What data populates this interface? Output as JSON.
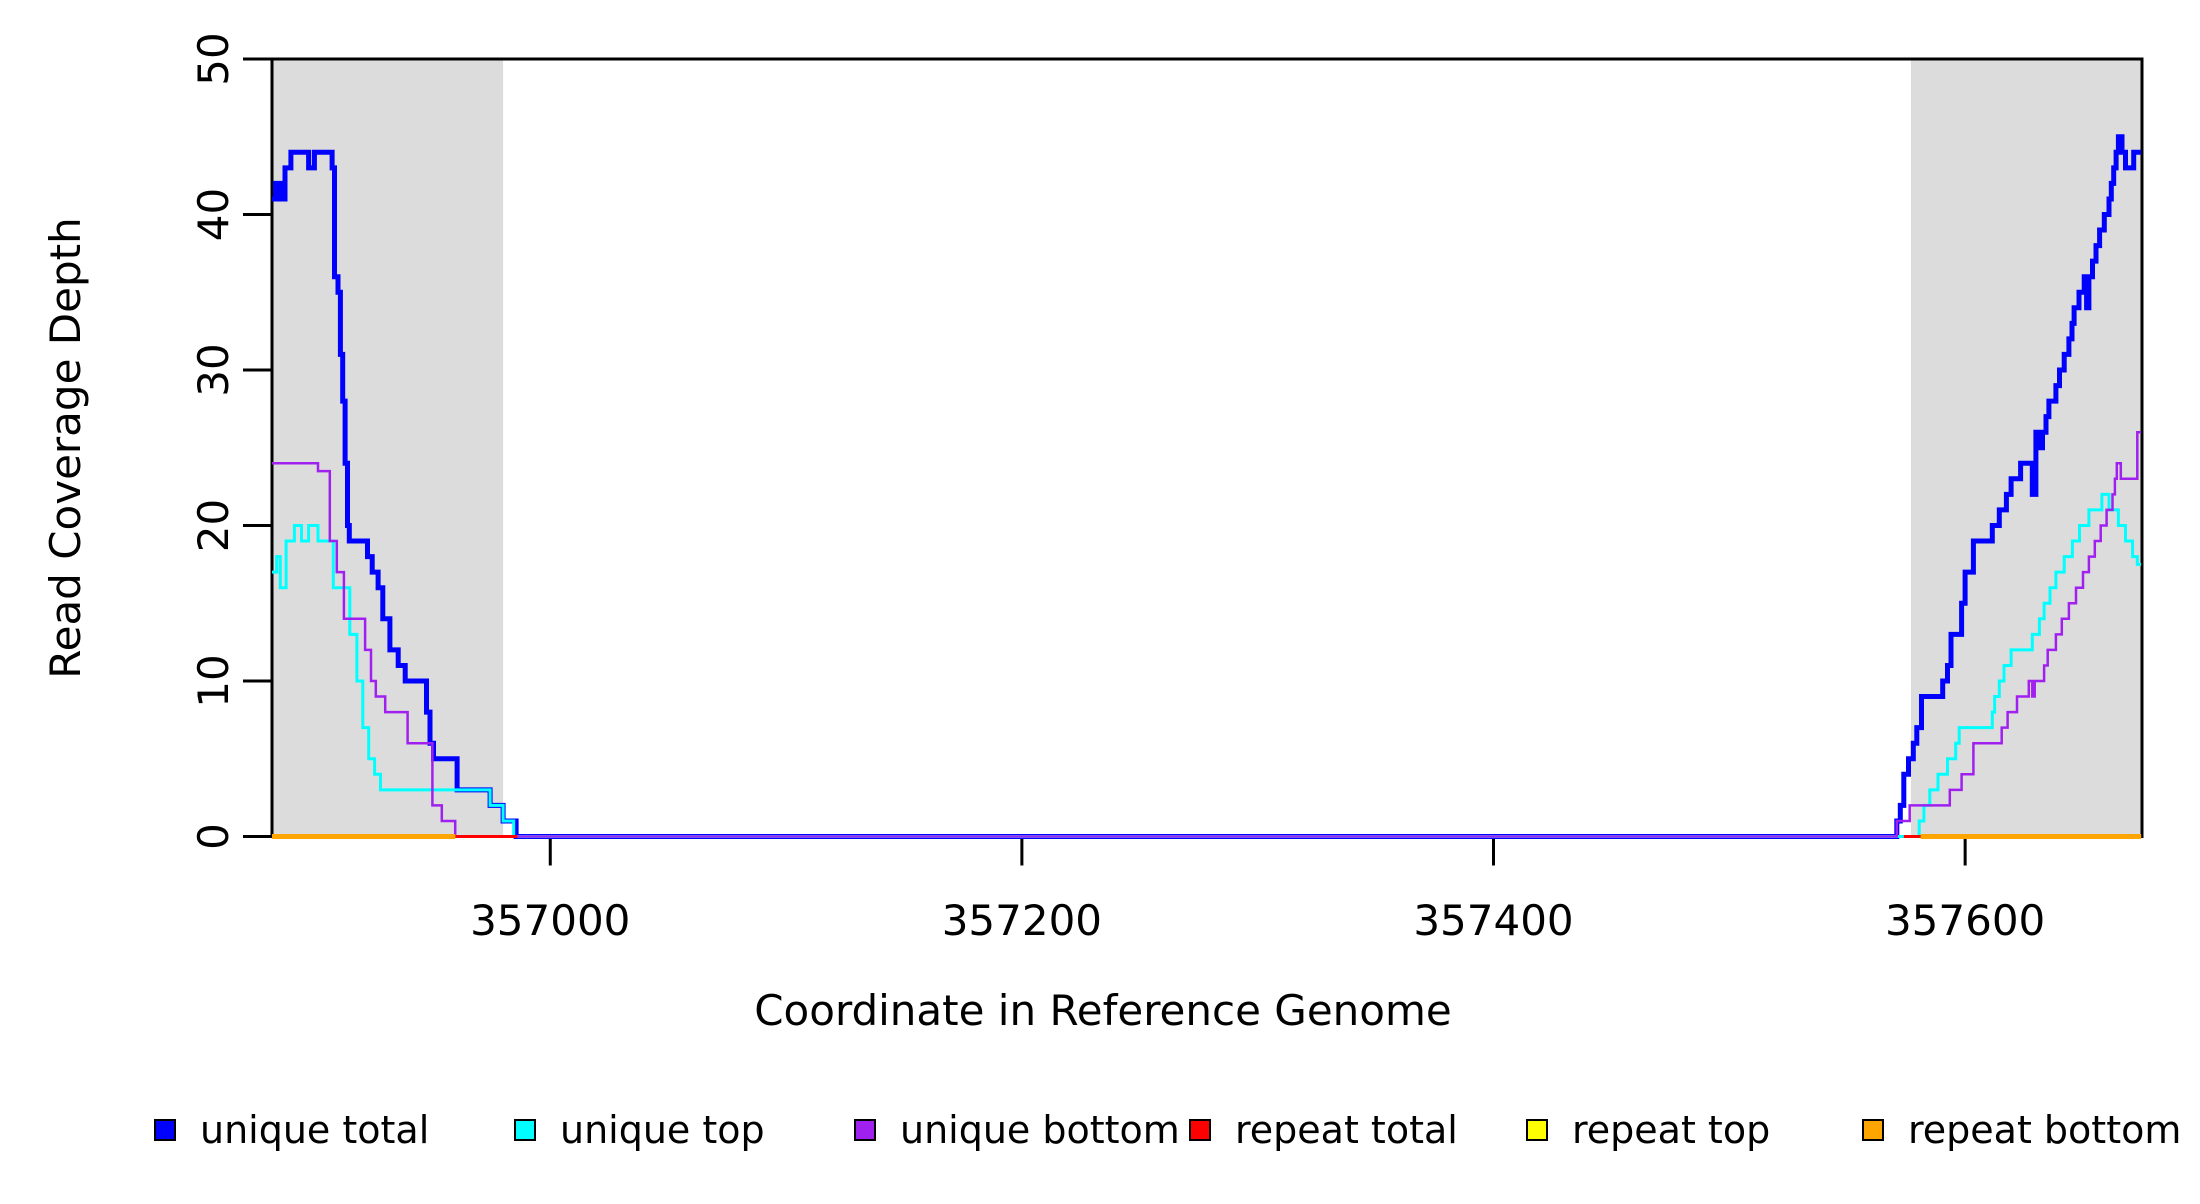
{
  "chart_data": {
    "type": "line",
    "subtype": "step-coverage-plot",
    "title": "",
    "xlabel": "Coordinate in Reference Genome",
    "ylabel": "Read Coverage Depth",
    "xlim": [
      356882,
      357675
    ],
    "ylim": [
      0,
      50
    ],
    "x_ticks": [
      357000,
      357200,
      357400,
      357600
    ],
    "y_ticks": [
      0,
      10,
      20,
      30,
      40,
      50
    ],
    "grid": false,
    "background_color": "#ffffff",
    "shade_color": "#dcdcdc",
    "axis_color": "#000000",
    "shaded_regions": [
      {
        "name": "left-gray-region",
        "x0": 356882,
        "x1": 356980
      },
      {
        "name": "right-gray-region",
        "x0": 357577,
        "x1": 357675
      }
    ],
    "series": [
      {
        "name": "unique total",
        "color": "#0000ff",
        "line_width": 5,
        "segments": [
          [
            [
              356882,
              41
            ],
            [
              356883.5,
              42
            ],
            [
              356885.5,
              41
            ],
            [
              356887.5,
              43
            ],
            [
              356890,
              44
            ],
            [
              356897.5,
              43
            ],
            [
              356900,
              44
            ],
            [
              356907.5,
              43
            ],
            [
              356908.5,
              36
            ],
            [
              356910,
              35
            ],
            [
              356911,
              31
            ],
            [
              356912,
              28
            ],
            [
              356913,
              24
            ],
            [
              356914,
              20
            ],
            [
              356914.8,
              19
            ],
            [
              356922.5,
              18
            ],
            [
              356924.5,
              17
            ],
            [
              356927,
              16
            ],
            [
              356929,
              14
            ],
            [
              356932,
              12
            ],
            [
              356935.5,
              11
            ],
            [
              356938.5,
              10
            ],
            [
              356947.5,
              8
            ],
            [
              356949,
              6
            ],
            [
              356950.5,
              5
            ],
            [
              356960.5,
              3
            ],
            [
              356974.5,
              2
            ],
            [
              356980,
              1
            ],
            [
              356985.5,
              0
            ],
            [
              357571,
              1
            ],
            [
              357572.5,
              2
            ],
            [
              357574,
              4
            ],
            [
              357576,
              5
            ],
            [
              357578,
              6
            ],
            [
              357579.5,
              7
            ],
            [
              357581.5,
              9
            ],
            [
              357590.5,
              10
            ],
            [
              357592.5,
              11
            ],
            [
              357594,
              13
            ],
            [
              357598.5,
              15
            ],
            [
              357600,
              17
            ],
            [
              357603.5,
              19
            ],
            [
              357611.5,
              20
            ],
            [
              357614.5,
              21
            ],
            [
              357617.5,
              22
            ],
            [
              357619.5,
              23
            ],
            [
              357623.5,
              24
            ],
            [
              357628.5,
              22
            ],
            [
              357630,
              26
            ],
            [
              357631.8,
              25
            ],
            [
              357632.8,
              26
            ],
            [
              357634.3,
              27
            ],
            [
              357635.5,
              28
            ],
            [
              357638.5,
              29
            ],
            [
              357640,
              30
            ],
            [
              357642,
              31
            ],
            [
              357644,
              32
            ],
            [
              357645.3,
              33
            ],
            [
              357646.2,
              34
            ],
            [
              357648.3,
              35
            ],
            [
              357650.5,
              36
            ],
            [
              357651.5,
              34
            ],
            [
              357652.5,
              36
            ],
            [
              357654,
              37
            ],
            [
              357655.5,
              38
            ],
            [
              357657,
              39
            ],
            [
              357659,
              40
            ],
            [
              357661,
              41
            ],
            [
              357662,
              42
            ],
            [
              357663,
              43
            ],
            [
              357664,
              44
            ],
            [
              357665,
              45
            ],
            [
              357666.5,
              44
            ],
            [
              357668,
              43
            ],
            [
              357671.5,
              44
            ],
            [
              357674.6,
              44
            ]
          ]
        ]
      },
      {
        "name": "unique top",
        "color": "#00ffff",
        "line_width": 3,
        "segments": [
          [
            [
              356882,
              17
            ],
            [
              356884,
              18
            ],
            [
              356885.5,
              16
            ],
            [
              356888,
              19
            ],
            [
              356891.5,
              20
            ],
            [
              356894.5,
              19
            ],
            [
              356897.5,
              20
            ],
            [
              356901.5,
              19
            ],
            [
              356908,
              16
            ],
            [
              356915,
              13
            ],
            [
              356918,
              10
            ],
            [
              356920.5,
              7
            ],
            [
              356923,
              5
            ],
            [
              356925.5,
              4
            ],
            [
              356928,
              3
            ],
            [
              356974.5,
              2
            ],
            [
              356980,
              1
            ],
            [
              356984.5,
              0
            ],
            [
              357580.5,
              1
            ],
            [
              357582.5,
              2
            ],
            [
              357585,
              3
            ],
            [
              357588.5,
              4
            ],
            [
              357592.5,
              5
            ],
            [
              357596,
              6
            ],
            [
              357597.5,
              7
            ],
            [
              357611.5,
              8
            ],
            [
              357612.5,
              9
            ],
            [
              357614.5,
              10
            ],
            [
              357616.5,
              11
            ],
            [
              357619.5,
              12
            ],
            [
              357628.5,
              13
            ],
            [
              357631.5,
              14
            ],
            [
              357633.5,
              15
            ],
            [
              357636,
              16
            ],
            [
              357638.5,
              17
            ],
            [
              357642,
              18
            ],
            [
              357645.5,
              19
            ],
            [
              357648.5,
              20
            ],
            [
              357652.5,
              21
            ],
            [
              357658,
              22
            ],
            [
              357661,
              21
            ],
            [
              357665,
              20
            ],
            [
              357668,
              19
            ],
            [
              357671,
              18
            ],
            [
              357673,
              17.5
            ],
            [
              357674.6,
              17.5
            ]
          ]
        ]
      },
      {
        "name": "unique bottom",
        "color": "#a020f0",
        "line_width": 2.5,
        "segments": [
          [
            [
              356882,
              24
            ],
            [
              356901.5,
              23.5
            ],
            [
              356906.5,
              19
            ],
            [
              356909.5,
              17
            ],
            [
              356912.5,
              14
            ],
            [
              356921.5,
              12
            ],
            [
              356924,
              10
            ],
            [
              356926,
              9
            ],
            [
              356930,
              8
            ],
            [
              356939.5,
              6
            ],
            [
              356950,
              2
            ],
            [
              356954,
              1
            ],
            [
              356959.7,
              0
            ],
            [
              357571,
              1
            ],
            [
              357576.5,
              2
            ],
            [
              357593.5,
              3
            ],
            [
              357598.5,
              4
            ],
            [
              357603.5,
              6
            ],
            [
              357615.5,
              7
            ],
            [
              357618,
              8
            ],
            [
              357622,
              9
            ],
            [
              357627,
              10
            ],
            [
              357628.5,
              9
            ],
            [
              357629.5,
              10
            ],
            [
              357633.5,
              11
            ],
            [
              357635,
              12
            ],
            [
              357638.5,
              13
            ],
            [
              357641,
              14
            ],
            [
              357644,
              15
            ],
            [
              357647,
              16
            ],
            [
              357650,
              17
            ],
            [
              357652.5,
              18
            ],
            [
              357655,
              19
            ],
            [
              357657.5,
              20
            ],
            [
              357660,
              21
            ],
            [
              357662.5,
              22
            ],
            [
              357663.5,
              23
            ],
            [
              357664.3,
              24
            ],
            [
              357666,
              23
            ],
            [
              357673,
              26
            ],
            [
              357674.6,
              26
            ]
          ]
        ]
      },
      {
        "name": "repeat total",
        "color": "#ff0000",
        "line_width": 3,
        "segments": [
          [
            [
              356959.7,
              0
            ],
            [
              356986,
              0
            ]
          ],
          [
            [
              357574,
              0
            ],
            [
              357581.2,
              0
            ]
          ]
        ]
      },
      {
        "name": "repeat top",
        "color": "#ffff00",
        "line_width": 3,
        "segments": [
          [
            [
              356882,
              0
            ],
            [
              356959.7,
              0
            ]
          ],
          [
            [
              357581.2,
              0
            ],
            [
              357674.6,
              0
            ]
          ]
        ]
      },
      {
        "name": "repeat bottom",
        "color": "#ffa500",
        "line_width": 5,
        "segments": [
          [
            [
              356882,
              0
            ],
            [
              356959.7,
              0
            ]
          ],
          [
            [
              357581.2,
              0
            ],
            [
              357674.6,
              0
            ]
          ]
        ]
      }
    ],
    "legend": {
      "position": "bottom",
      "entries": [
        {
          "label": "unique total",
          "color": "#0000ff"
        },
        {
          "label": "unique top",
          "color": "#00ffff"
        },
        {
          "label": "unique bottom",
          "color": "#a020f0"
        },
        {
          "label": "repeat total",
          "color": "#ff0000"
        },
        {
          "label": "repeat top",
          "color": "#ffff00"
        },
        {
          "label": "repeat bottom",
          "color": "#ffa500"
        }
      ]
    }
  }
}
